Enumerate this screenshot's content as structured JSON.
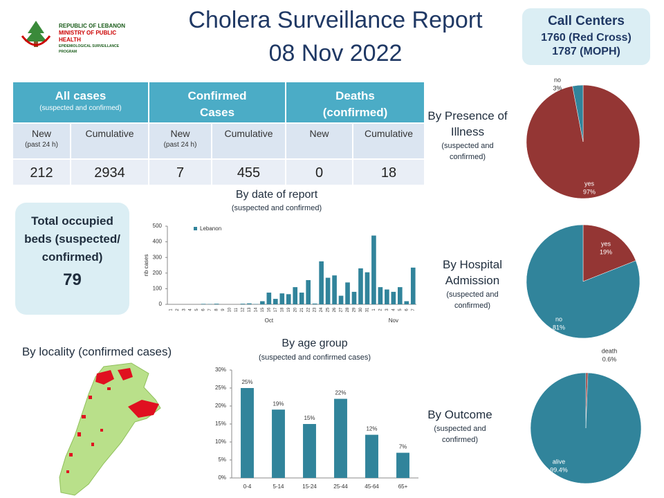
{
  "header": {
    "logo": [
      "REPUBLIC OF LEBANON",
      "MINISTRY OF PUBLIC HEALTH",
      "EPIDEMIOLOGICAL SURVEILLANCE PROGRAM"
    ],
    "title": "Cholera Surveillance Report",
    "date": "08 Nov 2022"
  },
  "call_centers": {
    "title": "Call Centers",
    "lines": [
      "1760 (Red Cross)",
      "1787 (MOPH)"
    ]
  },
  "table": {
    "groups": [
      {
        "title": "All cases",
        "subtitle": "(suspected and confirmed)"
      },
      {
        "title": "Confirmed  Cases"
      },
      {
        "title": "Deaths (confirmed)"
      }
    ],
    "columns": [
      {
        "title": "New",
        "subtitle": "(past 24 h)"
      },
      {
        "title": "Cumulative"
      },
      {
        "title": "New",
        "subtitle": "(past 24 h)"
      },
      {
        "title": "Cumulative"
      },
      {
        "title": "New"
      },
      {
        "title": "Cumulative"
      }
    ],
    "values": [
      212,
      2934,
      7,
      455,
      0,
      18
    ]
  },
  "beds": {
    "title": "Total occupied beds (suspected/ confirmed)",
    "value": 79
  },
  "locality": {
    "title": "By locality (confirmed cases)"
  },
  "chart_data": [
    {
      "type": "bar",
      "title": "By date of report",
      "subtitle": "(suspected and confirmed)",
      "y_label": "nb cases",
      "categories": [
        "1",
        "2",
        "3",
        "4",
        "5",
        "6",
        "7",
        "8",
        "9",
        "10",
        "11",
        "12",
        "13",
        "14",
        "15",
        "16",
        "17",
        "18",
        "19",
        "20",
        "21",
        "22",
        "23",
        "24",
        "25",
        "26",
        "27",
        "28",
        "29",
        "30",
        "31",
        "1",
        "2",
        "3",
        "4",
        "5",
        "6",
        "7"
      ],
      "x_groups": [
        "Oct",
        "Nov"
      ],
      "series": [
        {
          "name": "Lebanon",
          "color": "#31849b",
          "values": [
            0,
            0,
            0,
            0,
            0,
            3,
            2,
            4,
            0,
            0,
            0,
            4,
            6,
            2,
            20,
            75,
            35,
            70,
            65,
            110,
            75,
            155,
            5,
            275,
            170,
            185,
            55,
            140,
            80,
            230,
            205,
            440,
            110,
            95,
            80,
            110,
            20,
            235
          ]
        }
      ],
      "ylim": [
        0,
        500
      ],
      "yticks": [
        0,
        100,
        200,
        300,
        400,
        500
      ],
      "legend": "top-left"
    },
    {
      "type": "bar",
      "title": "By age group",
      "subtitle": "(suspected and confirmed cases)",
      "categories": [
        "0-4",
        "5-14",
        "15-24",
        "25-44",
        "45-64",
        "65+"
      ],
      "values": [
        25,
        19,
        15,
        22,
        12,
        7
      ],
      "value_labels": [
        "25%",
        "19%",
        "15%",
        "22%",
        "12%",
        "7%"
      ],
      "color": "#31849b",
      "ylim": [
        0,
        30
      ],
      "yticks": [
        {
          "value": 0,
          "label": "0%"
        },
        {
          "value": 5,
          "label": "5%"
        },
        {
          "value": 10,
          "label": "10%"
        },
        {
          "value": 15,
          "label": "15%"
        },
        {
          "value": 20,
          "label": "20%"
        },
        {
          "value": 25,
          "label": "25%"
        },
        {
          "value": 30,
          "label": "30%"
        }
      ]
    },
    {
      "type": "pie",
      "title": "By Presence of Illness",
      "subtitle": "(suspected and confirmed)",
      "categories": [
        "yes",
        "no"
      ],
      "values": [
        97,
        3
      ],
      "value_labels": [
        "97%",
        "3%"
      ],
      "colors": [
        "#943634",
        "#31849b"
      ]
    },
    {
      "type": "pie",
      "title": "By Hospital Admission",
      "subtitle": "(suspected and confirmed)",
      "categories": [
        "yes",
        "no"
      ],
      "values": [
        19,
        81
      ],
      "value_labels": [
        "19%",
        "81%"
      ],
      "colors": [
        "#943634",
        "#31849b"
      ]
    },
    {
      "type": "pie",
      "title": "By Outcome",
      "subtitle": "(suspected and confirmed)",
      "categories": [
        "death",
        "alive"
      ],
      "values": [
        0.6,
        99.4
      ],
      "value_labels": [
        "0.6%",
        "99.4%"
      ],
      "colors": [
        "#943634",
        "#31849b"
      ]
    }
  ]
}
